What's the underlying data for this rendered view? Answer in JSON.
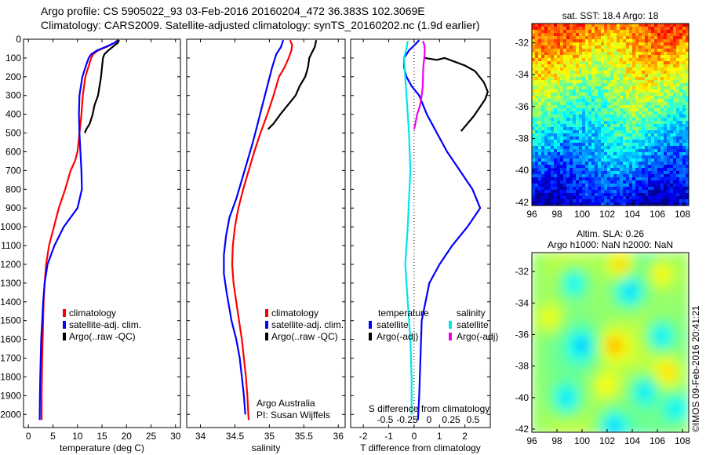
{
  "header": {
    "line1": "Argo profile: CS 5905022_93 03-Feb-2016 20160204_472 36.383S 102.3069E",
    "line2": "Climatology: CARS2009. Satellite-adjusted climatology: synTS_20160202.nc (1.9d earlier)"
  },
  "colors": {
    "climatology": "#ff0000",
    "satellite": "#0000ff",
    "argo": "#000000",
    "t_satellite": "#00e5ee",
    "s_argo_adj": "#ee00ee"
  },
  "credit": "©IMOS 09-Feb-2016 20:41:21",
  "chart_data": [
    {
      "type": "line",
      "xlabel": "temperature (deg C)",
      "ylabel": "",
      "xlim": [
        -1,
        31
      ],
      "ylim": [
        2070,
        0
      ],
      "y_reversed": true,
      "xticks": [
        0,
        5,
        10,
        15,
        20,
        25,
        30
      ],
      "yticks": [
        0,
        100,
        200,
        300,
        400,
        500,
        600,
        700,
        800,
        900,
        1000,
        1100,
        1200,
        1300,
        1400,
        1500,
        1600,
        1700,
        1800,
        1900,
        2000
      ],
      "legend": [
        "climatology",
        "satellite-adj. clim.",
        "Argo(..raw -QC)"
      ],
      "legend_position": "lower-left",
      "series": [
        {
          "name": "climatology",
          "color": "#ff0000",
          "points": [
            [
              18.2,
              5
            ],
            [
              17.5,
              20
            ],
            [
              16,
              40
            ],
            [
              14.2,
              60
            ],
            [
              13.2,
              80
            ],
            [
              12.8,
              100
            ],
            [
              12.2,
              150
            ],
            [
              11.6,
              200
            ],
            [
              11.1,
              300
            ],
            [
              10.8,
              400
            ],
            [
              10.4,
              500
            ],
            [
              10,
              600
            ],
            [
              9.5,
              650
            ],
            [
              8.6,
              700
            ],
            [
              7.5,
              800
            ],
            [
              6.2,
              900
            ],
            [
              5.2,
              1000
            ],
            [
              4.2,
              1100
            ],
            [
              3.6,
              1200
            ],
            [
              3.3,
              1300
            ],
            [
              3.1,
              1400
            ],
            [
              3,
              1500
            ],
            [
              2.9,
              1600
            ],
            [
              2.8,
              1700
            ],
            [
              2.75,
              1800
            ],
            [
              2.7,
              1900
            ],
            [
              2.7,
              2030
            ]
          ]
        },
        {
          "name": "satellite-adj. clim.",
          "color": "#0000ff",
          "points": [
            [
              18.4,
              5
            ],
            [
              17.5,
              20
            ],
            [
              15.8,
              40
            ],
            [
              14,
              60
            ],
            [
              12.8,
              80
            ],
            [
              12.3,
              100
            ],
            [
              11.6,
              150
            ],
            [
              11,
              200
            ],
            [
              10.4,
              300
            ],
            [
              10.3,
              400
            ],
            [
              10.4,
              500
            ],
            [
              10.6,
              600
            ],
            [
              10.8,
              700
            ],
            [
              10.9,
              800
            ],
            [
              10,
              900
            ],
            [
              7.2,
              1000
            ],
            [
              5.3,
              1100
            ],
            [
              3.9,
              1200
            ],
            [
              3.3,
              1300
            ],
            [
              3,
              1400
            ],
            [
              2.8,
              1500
            ],
            [
              2.6,
              1600
            ],
            [
              2.5,
              1700
            ],
            [
              2.4,
              1800
            ],
            [
              2.35,
              1900
            ],
            [
              2.3,
              2030
            ]
          ]
        },
        {
          "name": "Argo(..raw -QC)",
          "color": "#000000",
          "points": [
            [
              18.5,
              5
            ],
            [
              18.2,
              20
            ],
            [
              17.2,
              40
            ],
            [
              16.3,
              60
            ],
            [
              15.5,
              80
            ],
            [
              15.2,
              100
            ],
            [
              15,
              150
            ],
            [
              14.8,
              200
            ],
            [
              14.5,
              250
            ],
            [
              14.2,
              300
            ],
            [
              13.5,
              350
            ],
            [
              13.1,
              400
            ],
            [
              12.5,
              450
            ],
            [
              11.8,
              480
            ],
            [
              11.5,
              500
            ]
          ]
        }
      ]
    },
    {
      "type": "line",
      "xlabel": "salinity",
      "ylabel": "",
      "xlim": [
        33.8,
        36.1
      ],
      "ylim": [
        2070,
        0
      ],
      "y_reversed": true,
      "xticks": [
        34,
        34.5,
        35,
        35.5,
        36
      ],
      "xtick_labels": [
        "34",
        "34.5",
        "35",
        "35.5",
        "36"
      ],
      "legend": [
        "climatology",
        "satellite-adj. clim.",
        "Argo(..raw -QC)"
      ],
      "legend_position": "lower-right",
      "annotation": [
        "Argo Australia",
        "PI: Susan Wijffels"
      ],
      "series": [
        {
          "name": "climatology",
          "color": "#ff0000",
          "points": [
            [
              35.3,
              5
            ],
            [
              35.33,
              30
            ],
            [
              35.32,
              60
            ],
            [
              35.28,
              100
            ],
            [
              35.22,
              150
            ],
            [
              35.14,
              200
            ],
            [
              35.06,
              300
            ],
            [
              34.97,
              400
            ],
            [
              34.87,
              500
            ],
            [
              34.78,
              600
            ],
            [
              34.7,
              700
            ],
            [
              34.62,
              800
            ],
            [
              34.55,
              900
            ],
            [
              34.5,
              1000
            ],
            [
              34.47,
              1100
            ],
            [
              34.46,
              1200
            ],
            [
              34.48,
              1300
            ],
            [
              34.52,
              1400
            ],
            [
              34.56,
              1500
            ],
            [
              34.6,
              1600
            ],
            [
              34.63,
              1700
            ],
            [
              34.66,
              1800
            ],
            [
              34.68,
              1900
            ],
            [
              34.7,
              2030
            ]
          ]
        },
        {
          "name": "satellite-adj. clim.",
          "color": "#0000ff",
          "points": [
            [
              35.2,
              5
            ],
            [
              35.17,
              40
            ],
            [
              35.1,
              80
            ],
            [
              35.04,
              150
            ],
            [
              34.97,
              250
            ],
            [
              34.9,
              350
            ],
            [
              34.83,
              450
            ],
            [
              34.76,
              550
            ],
            [
              34.68,
              650
            ],
            [
              34.6,
              750
            ],
            [
              34.52,
              850
            ],
            [
              34.42,
              950
            ],
            [
              34.37,
              1050
            ],
            [
              34.34,
              1150
            ],
            [
              34.34,
              1250
            ],
            [
              34.38,
              1350
            ],
            [
              34.45,
              1500
            ],
            [
              34.52,
              1600
            ],
            [
              34.57,
              1700
            ],
            [
              34.6,
              1800
            ],
            [
              34.63,
              1900
            ],
            [
              34.65,
              2000
            ]
          ]
        },
        {
          "name": "Argo(..raw -QC)",
          "color": "#000000",
          "points": [
            [
              35.68,
              5
            ],
            [
              35.66,
              40
            ],
            [
              35.62,
              70
            ],
            [
              35.58,
              100
            ],
            [
              35.56,
              150
            ],
            [
              35.52,
              200
            ],
            [
              35.44,
              250
            ],
            [
              35.38,
              300
            ],
            [
              35.27,
              350
            ],
            [
              35.16,
              400
            ],
            [
              35.06,
              450
            ],
            [
              34.98,
              480
            ]
          ]
        }
      ]
    },
    {
      "type": "line",
      "xlabel": "T difference from climatology",
      "top_xlabel": "S difference from climatology",
      "ylabel": "",
      "xlim": [
        -2.5,
        3
      ],
      "ylim": [
        2070,
        0
      ],
      "y_reversed": true,
      "xticks": [
        -2,
        -1,
        0,
        1,
        2
      ],
      "top_xticks": [
        -0.5,
        -0.25,
        0,
        0.25,
        0.5
      ],
      "top_xtick_labels": [
        "-0.5",
        "-0.25",
        "0",
        "0.25",
        "0.5"
      ],
      "zero_line": "dotted",
      "legend_groups": [
        {
          "title": "temperature",
          "items": [
            "satellite",
            "Argo(-adj)"
          ]
        },
        {
          "title": "salinity",
          "items": [
            "satellite",
            "Argo(-adj)"
          ]
        }
      ],
      "series": [
        {
          "name": "temperature satellite",
          "color": "#0000ff",
          "points": [
            [
              0.2,
              5
            ],
            [
              0.1,
              20
            ],
            [
              -0.05,
              40
            ],
            [
              -0.2,
              60
            ],
            [
              -0.3,
              80
            ],
            [
              -0.4,
              100
            ],
            [
              -0.4,
              150
            ],
            [
              -0.3,
              200
            ],
            [
              -0.1,
              250
            ],
            [
              0.2,
              300
            ],
            [
              0.5,
              400
            ],
            [
              0.9,
              500
            ],
            [
              1.3,
              600
            ],
            [
              1.8,
              700
            ],
            [
              2.3,
              800
            ],
            [
              2.6,
              900
            ],
            [
              2.1,
              1000
            ],
            [
              1.5,
              1100
            ],
            [
              1.0,
              1200
            ],
            [
              0.6,
              1300
            ],
            [
              0.3,
              1500
            ],
            [
              0.25,
              1700
            ],
            [
              0.2,
              1900
            ],
            [
              0.15,
              2030
            ]
          ]
        },
        {
          "name": "temperature Argo(-adj)",
          "color": "#000000",
          "points": [
            [
              0.4,
              100
            ],
            [
              0.9,
              110
            ],
            [
              1.2,
              100
            ],
            [
              1.6,
              120
            ],
            [
              2,
              140
            ],
            [
              2.4,
              170
            ],
            [
              2.75,
              230
            ],
            [
              2.9,
              280
            ],
            [
              2.8,
              320
            ],
            [
              2.6,
              360
            ],
            [
              2.35,
              410
            ],
            [
              2.1,
              450
            ],
            [
              1.85,
              490
            ]
          ]
        },
        {
          "name": "salinity satellite",
          "color": "#00e5ee",
          "points": [
            [
              -0.25,
              10
            ],
            [
              -0.3,
              50
            ],
            [
              -0.4,
              100
            ],
            [
              -0.35,
              200
            ],
            [
              -0.3,
              300
            ],
            [
              -0.25,
              400
            ],
            [
              -0.2,
              500
            ],
            [
              -0.15,
              700
            ],
            [
              -0.25,
              1000
            ],
            [
              -0.35,
              1200
            ],
            [
              -0.25,
              1400
            ],
            [
              -0.15,
              1600
            ],
            [
              -0.1,
              1800
            ],
            [
              -0.1,
              2000
            ]
          ]
        },
        {
          "name": "salinity Argo(-adj)",
          "color": "#ee00ee",
          "points": [
            [
              0.35,
              10
            ],
            [
              0.4,
              30
            ],
            [
              0.42,
              60
            ],
            [
              0.4,
              100
            ],
            [
              0.36,
              150
            ],
            [
              0.35,
              200
            ],
            [
              0.34,
              250
            ],
            [
              0.3,
              300
            ],
            [
              0.24,
              350
            ],
            [
              0.12,
              400
            ],
            [
              0.05,
              450
            ],
            [
              0,
              480
            ]
          ]
        }
      ]
    },
    {
      "type": "heatmap",
      "title": "sat. SST: 18.4 Argo: 18",
      "xlim": [
        96,
        108.5
      ],
      "ylim": [
        -42.2,
        -30.8
      ],
      "xticks": [
        96,
        98,
        100,
        102,
        104,
        106,
        108
      ],
      "yticks": [
        -32,
        -34,
        -36,
        -38,
        -40,
        -42
      ],
      "colormap": "jet",
      "note": "SST field warm (orange/red) in the north grading to cold (blue) in the south"
    },
    {
      "type": "heatmap",
      "title": "Altim. SLA: 0.26",
      "subtitle": "Argo h1000: NaN h2000: NaN",
      "xlim": [
        96,
        108.5
      ],
      "ylim": [
        -42.2,
        -30.8
      ],
      "xticks": [
        96,
        98,
        100,
        102,
        104,
        106,
        108
      ],
      "yticks": [
        -32,
        -34,
        -36,
        -38,
        -40,
        -42
      ],
      "colormap": "jet",
      "note": "Sea level anomaly mostly yellow-green with blue-green eddies and orange highs"
    }
  ]
}
